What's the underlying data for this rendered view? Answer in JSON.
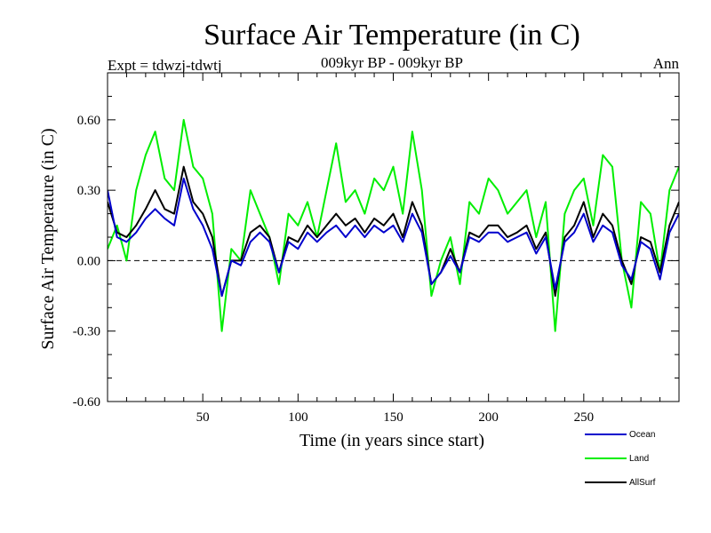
{
  "chart_data": {
    "type": "line",
    "title": "Surface Air Temperature (in C)",
    "subtitle": "009kyr BP - 009kyr BP",
    "left_note": "Expt = tdwzj-tdwtj",
    "right_note": "Ann",
    "xlabel": "Time (in years since start)",
    "ylabel": "Surface Air Temperature (in C)",
    "xlim": [
      0,
      300
    ],
    "ylim": [
      -0.6,
      0.8
    ],
    "xticks": [
      50,
      100,
      150,
      200,
      250
    ],
    "xtick_labels": [
      "50",
      "100",
      "150",
      "200",
      "250"
    ],
    "yticks": [
      -0.6,
      -0.3,
      0.0,
      0.3,
      0.6
    ],
    "ytick_labels": [
      "-0.60",
      "-0.30",
      "0.00",
      "0.30",
      "0.60"
    ],
    "zero_line": true,
    "series": [
      {
        "name": "Land",
        "color": "#00ee00",
        "x": [
          0,
          5,
          10,
          15,
          20,
          25,
          30,
          35,
          40,
          45,
          50,
          55,
          60,
          65,
          70,
          75,
          80,
          85,
          90,
          95,
          100,
          105,
          110,
          115,
          120,
          125,
          130,
          135,
          140,
          145,
          150,
          155,
          160,
          165,
          170,
          175,
          180,
          185,
          190,
          195,
          200,
          205,
          210,
          215,
          220,
          225,
          230,
          235,
          240,
          245,
          250,
          255,
          260,
          265,
          270,
          275,
          280,
          285,
          290,
          295,
          300
        ],
        "values": [
          0.05,
          0.15,
          0.0,
          0.3,
          0.45,
          0.55,
          0.35,
          0.3,
          0.6,
          0.4,
          0.35,
          0.2,
          -0.3,
          0.05,
          0.0,
          0.3,
          0.2,
          0.1,
          -0.1,
          0.2,
          0.15,
          0.25,
          0.1,
          0.3,
          0.5,
          0.25,
          0.3,
          0.2,
          0.35,
          0.3,
          0.4,
          0.2,
          0.55,
          0.3,
          -0.15,
          0.0,
          0.1,
          -0.1,
          0.25,
          0.2,
          0.35,
          0.3,
          0.2,
          0.25,
          0.3,
          0.1,
          0.25,
          -0.3,
          0.2,
          0.3,
          0.35,
          0.15,
          0.45,
          0.4,
          0.0,
          -0.2,
          0.25,
          0.2,
          -0.05,
          0.3,
          0.4
        ]
      },
      {
        "name": "AllSurf",
        "color": "#000000",
        "x": [
          0,
          5,
          10,
          15,
          20,
          25,
          30,
          35,
          40,
          45,
          50,
          55,
          60,
          65,
          70,
          75,
          80,
          85,
          90,
          95,
          100,
          105,
          110,
          115,
          120,
          125,
          130,
          135,
          140,
          145,
          150,
          155,
          160,
          165,
          170,
          175,
          180,
          185,
          190,
          195,
          200,
          205,
          210,
          215,
          220,
          225,
          230,
          235,
          240,
          245,
          250,
          255,
          260,
          265,
          270,
          275,
          280,
          285,
          290,
          295,
          300
        ],
        "values": [
          0.25,
          0.12,
          0.1,
          0.15,
          0.22,
          0.3,
          0.22,
          0.2,
          0.4,
          0.25,
          0.2,
          0.1,
          -0.15,
          0.0,
          0.0,
          0.12,
          0.15,
          0.1,
          -0.05,
          0.1,
          0.08,
          0.15,
          0.1,
          0.15,
          0.2,
          0.15,
          0.18,
          0.12,
          0.18,
          0.15,
          0.2,
          0.1,
          0.25,
          0.15,
          -0.1,
          -0.05,
          0.05,
          -0.05,
          0.12,
          0.1,
          0.15,
          0.15,
          0.1,
          0.12,
          0.15,
          0.05,
          0.12,
          -0.15,
          0.1,
          0.15,
          0.25,
          0.1,
          0.2,
          0.15,
          0.0,
          -0.1,
          0.1,
          0.08,
          -0.05,
          0.15,
          0.25
        ]
      },
      {
        "name": "Ocean",
        "color": "#0000cc",
        "x": [
          0,
          5,
          10,
          15,
          20,
          25,
          30,
          35,
          40,
          45,
          50,
          55,
          60,
          65,
          70,
          75,
          80,
          85,
          90,
          95,
          100,
          105,
          110,
          115,
          120,
          125,
          130,
          135,
          140,
          145,
          150,
          155,
          160,
          165,
          170,
          175,
          180,
          185,
          190,
          195,
          200,
          205,
          210,
          215,
          220,
          225,
          230,
          235,
          240,
          245,
          250,
          255,
          260,
          265,
          270,
          275,
          280,
          285,
          290,
          295,
          300
        ],
        "values": [
          0.3,
          0.1,
          0.08,
          0.12,
          0.18,
          0.22,
          0.18,
          0.15,
          0.35,
          0.22,
          0.15,
          0.05,
          -0.15,
          0.0,
          -0.02,
          0.08,
          0.12,
          0.08,
          -0.05,
          0.08,
          0.05,
          0.12,
          0.08,
          0.12,
          0.15,
          0.1,
          0.15,
          0.1,
          0.15,
          0.12,
          0.15,
          0.08,
          0.2,
          0.12,
          -0.1,
          -0.05,
          0.02,
          -0.05,
          0.1,
          0.08,
          0.12,
          0.12,
          0.08,
          0.1,
          0.12,
          0.03,
          0.1,
          -0.12,
          0.08,
          0.12,
          0.2,
          0.08,
          0.15,
          0.12,
          -0.02,
          -0.08,
          0.08,
          0.05,
          -0.08,
          0.12,
          0.2
        ]
      }
    ],
    "legend": [
      {
        "name": "Ocean",
        "color": "#0000cc"
      },
      {
        "name": "Land",
        "color": "#00ee00"
      },
      {
        "name": "AllSurf",
        "color": "#000000"
      }
    ],
    "legend_position": "bottom-right, outside plot"
  }
}
